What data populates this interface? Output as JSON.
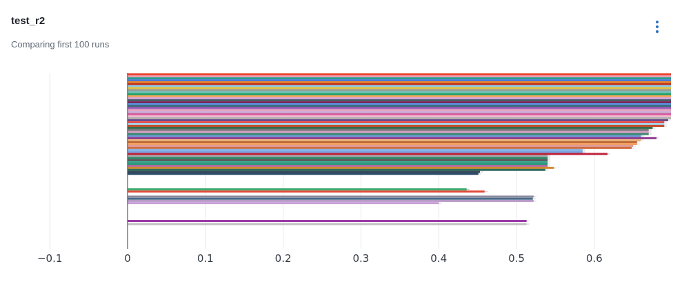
{
  "panel": {
    "title": "test_r2",
    "subtitle": "Comparing first 100 runs",
    "menu_icon": "kebab-menu-icon",
    "menu_icon_color": "#2f6fbd"
  },
  "chart_data": {
    "type": "bar",
    "orientation": "horizontal",
    "title": "test_r2",
    "subtitle": "Comparing first 100 runs",
    "xlabel": "",
    "ylabel": "",
    "xlim": [
      -0.1,
      0.7
    ],
    "xticks": [
      -0.1,
      0,
      0.1,
      0.2,
      0.3,
      0.4,
      0.5,
      0.6
    ],
    "xtick_labels": [
      "−0.1",
      "0",
      "0.1",
      "0.2",
      "0.3",
      "0.4",
      "0.5",
      "0.6"
    ],
    "grid": "vertical",
    "error_bars": true,
    "bars": [
      {
        "value": 0.7,
        "color": "#e8452c"
      },
      {
        "value": 0.7,
        "color": "#f0a0b4"
      },
      {
        "value": 0.7,
        "color": "#2a9d8f"
      },
      {
        "value": 0.7,
        "color": "#4b7bd1"
      },
      {
        "value": 0.7,
        "color": "#e07b2e"
      },
      {
        "value": 0.7,
        "color": "#c23b22"
      },
      {
        "value": 0.7,
        "color": "#8cc6e8"
      },
      {
        "value": 0.7,
        "color": "#e0c23a"
      },
      {
        "value": 0.7,
        "color": "#9a9a9a"
      },
      {
        "value": 0.7,
        "color": "#6fc3b8"
      },
      {
        "value": 0.7,
        "color": "#26a269"
      },
      {
        "value": 0.7,
        "color": "#f2a45c"
      },
      {
        "value": 0.7,
        "color": "#d3a3d8"
      },
      {
        "value": 0.7,
        "color": "#4a5a6a"
      },
      {
        "value": 0.7,
        "color": "#7a2a5a"
      },
      {
        "value": 0.7,
        "color": "#5b8bd6"
      },
      {
        "value": 0.7,
        "color": "#3a6a7a"
      },
      {
        "value": 0.7,
        "color": "#9b59b6"
      },
      {
        "value": 0.7,
        "color": "#e7a3c0"
      },
      {
        "value": 0.7,
        "color": "#c9b0d8"
      },
      {
        "value": 0.7,
        "color": "#d45a9a"
      },
      {
        "value": 0.7,
        "color": "#f2b8cf"
      },
      {
        "value": 0.7,
        "color": "#b0b0b0"
      },
      {
        "value": 0.695,
        "color": "#6a4a8a"
      },
      {
        "value": 0.69,
        "color": "#e05050"
      },
      {
        "value": 0.69,
        "color": "#a8d0e8"
      },
      {
        "value": 0.69,
        "color": "#c44a2a"
      },
      {
        "value": 0.675,
        "color": "#2e6b4a"
      },
      {
        "value": 0.67,
        "color": "#7a7a7a"
      },
      {
        "value": 0.67,
        "color": "#d8a0c8"
      },
      {
        "value": 0.67,
        "color": "#3a8a6a"
      },
      {
        "value": 0.66,
        "color": "#6a9ad6"
      },
      {
        "value": 0.68,
        "color": "#8e3a8e"
      },
      {
        "value": 0.66,
        "color": "#e8b07a"
      },
      {
        "value": 0.655,
        "color": "#c06a3a"
      },
      {
        "value": 0.655,
        "color": "#f0a060"
      },
      {
        "value": 0.65,
        "color": "#e09a9a"
      },
      {
        "value": 0.648,
        "color": "#d06a3a"
      },
      {
        "value": 0.585,
        "color": "#8ab4e6"
      },
      {
        "value": 0.585,
        "color": "#7aa6e0"
      },
      {
        "value": 0.617,
        "color": "#c0203a"
      },
      {
        "value": 0.54,
        "color": "#a8a8a8"
      },
      {
        "value": 0.54,
        "color": "#2e8a6a"
      },
      {
        "value": 0.54,
        "color": "#5a5a5a"
      },
      {
        "value": 0.54,
        "color": "#3aa08a"
      },
      {
        "value": 0.54,
        "color": "#2a9a7a"
      },
      {
        "value": 0.54,
        "color": "#b06aa0"
      },
      {
        "value": 0.548,
        "color": "#d08a2a"
      },
      {
        "value": 0.537,
        "color": "#2a6a5a"
      },
      {
        "value": 0.453,
        "color": "#3a4a5a"
      },
      {
        "value": 0.451,
        "color": "#2a4a6a"
      },
      {
        "value": 0.436,
        "color": "#3aaa6a"
      },
      {
        "value": 0.459,
        "color": "#e04a3a"
      },
      {
        "value": 0.522,
        "color": "#8a8aa0"
      },
      {
        "value": 0.521,
        "color": "#4a6a8a"
      },
      {
        "value": 0.522,
        "color": "#b89ac8"
      },
      {
        "value": 0.4,
        "color": "#c8a0d8"
      },
      {
        "value": 0.513,
        "color": "#9b3aa8"
      },
      {
        "value": 0.513,
        "color": "#c0c0c0"
      }
    ]
  }
}
